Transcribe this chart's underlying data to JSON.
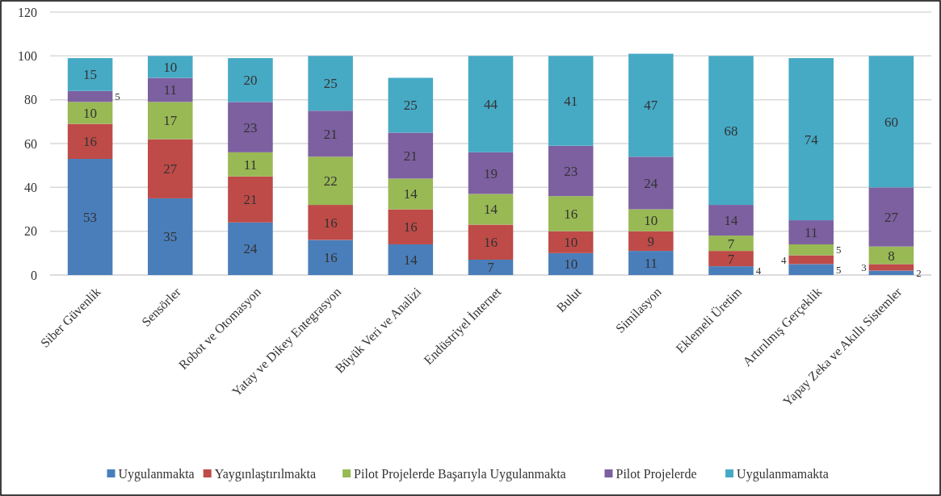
{
  "chart_data": {
    "type": "bar",
    "stacked": true,
    "categories": [
      "Siber Güvenlik",
      "Sensörler",
      "Robot ve Otomasyon",
      "Yatay ve Dikey Entegrasyon",
      "Büyük Veri ve Analizi",
      "Endüstriyel İnternet",
      "Bulut",
      "Similasyon",
      "Eklemeli Üretim",
      "Artırılmış Gerçeklik",
      "Yapay Zeka ve Akıllı Sistemler"
    ],
    "series": [
      {
        "name": "Uygulanmakta",
        "color": "#4a7ebb",
        "values": [
          53,
          35,
          24,
          16,
          14,
          7,
          10,
          11,
          4,
          5,
          2
        ]
      },
      {
        "name": "Yaygınlaştırılmakta",
        "color": "#be4b48",
        "values": [
          16,
          27,
          21,
          16,
          16,
          16,
          10,
          9,
          7,
          4,
          3
        ]
      },
      {
        "name": "Pilot Projelerde Başarıyla Uygulanmakta",
        "color": "#98b954",
        "values": [
          10,
          17,
          11,
          22,
          14,
          14,
          16,
          10,
          7,
          5,
          8
        ]
      },
      {
        "name": "Pilot Projelerde",
        "color": "#7d60a0",
        "values": [
          5,
          11,
          23,
          21,
          21,
          19,
          23,
          24,
          14,
          11,
          27
        ]
      },
      {
        "name": "Uygulanmamakta",
        "color": "#46aac5",
        "values": [
          15,
          10,
          20,
          25,
          25,
          44,
          41,
          47,
          68,
          74,
          60
        ]
      }
    ],
    "ylim": [
      0,
      120
    ],
    "yticks": [
      0,
      20,
      40,
      60,
      80,
      100,
      120
    ],
    "grid": "y",
    "legend": "bottom",
    "data_labels": true
  }
}
